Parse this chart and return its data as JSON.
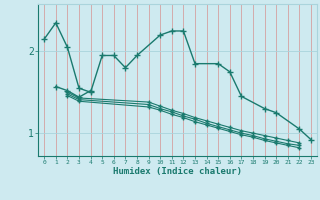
{
  "xlabel": "Humidex (Indice chaleur)",
  "background_color": "#ceeaf0",
  "grid_color": "#aad4dc",
  "line_color": "#1a7a6e",
  "x_values": [
    0,
    1,
    2,
    3,
    4,
    5,
    6,
    7,
    8,
    9,
    10,
    11,
    12,
    13,
    14,
    15,
    16,
    17,
    18,
    19,
    20,
    21,
    22,
    23
  ],
  "series1": [
    2.15,
    2.35,
    2.05,
    1.55,
    1.5,
    1.95,
    1.95,
    1.8,
    1.95,
    null,
    2.2,
    2.25,
    2.25,
    1.85,
    null,
    1.85,
    1.75,
    1.45,
    null,
    1.3,
    1.25,
    null,
    1.05,
    0.92
  ],
  "series2": [
    null,
    1.57,
    1.52,
    1.44,
    1.52,
    null,
    null,
    null,
    null,
    null,
    null,
    null,
    null,
    null,
    null,
    null,
    null,
    null,
    null,
    null,
    null,
    null,
    null,
    null
  ],
  "series3": [
    null,
    null,
    1.5,
    1.43,
    null,
    null,
    null,
    null,
    null,
    1.38,
    1.33,
    1.28,
    1.24,
    1.19,
    1.15,
    1.11,
    1.07,
    1.03,
    1.0,
    0.97,
    0.94,
    0.91,
    0.88,
    null
  ],
  "series4": [
    null,
    null,
    1.48,
    1.41,
    null,
    null,
    null,
    null,
    null,
    1.35,
    1.3,
    1.26,
    1.21,
    1.17,
    1.12,
    1.08,
    1.04,
    1.0,
    0.97,
    0.93,
    0.9,
    0.87,
    0.85,
    null
  ],
  "series5": [
    null,
    null,
    1.46,
    1.39,
    null,
    null,
    null,
    null,
    null,
    1.32,
    1.28,
    1.23,
    1.19,
    1.14,
    1.1,
    1.06,
    1.02,
    0.98,
    0.95,
    0.91,
    0.88,
    0.85,
    0.82,
    null
  ],
  "ylim": [
    0.72,
    2.58
  ],
  "yticks": [
    1.0,
    2.0
  ],
  "xlim": [
    -0.5,
    23.5
  ],
  "xtick_labels": [
    "0",
    "1",
    "2",
    "3",
    "4",
    "5",
    "6",
    "7",
    "8",
    "9",
    "10",
    "11",
    "12",
    "13",
    "14",
    "15",
    "16",
    "17",
    "18",
    "19",
    "20",
    "21",
    "22",
    "23"
  ]
}
